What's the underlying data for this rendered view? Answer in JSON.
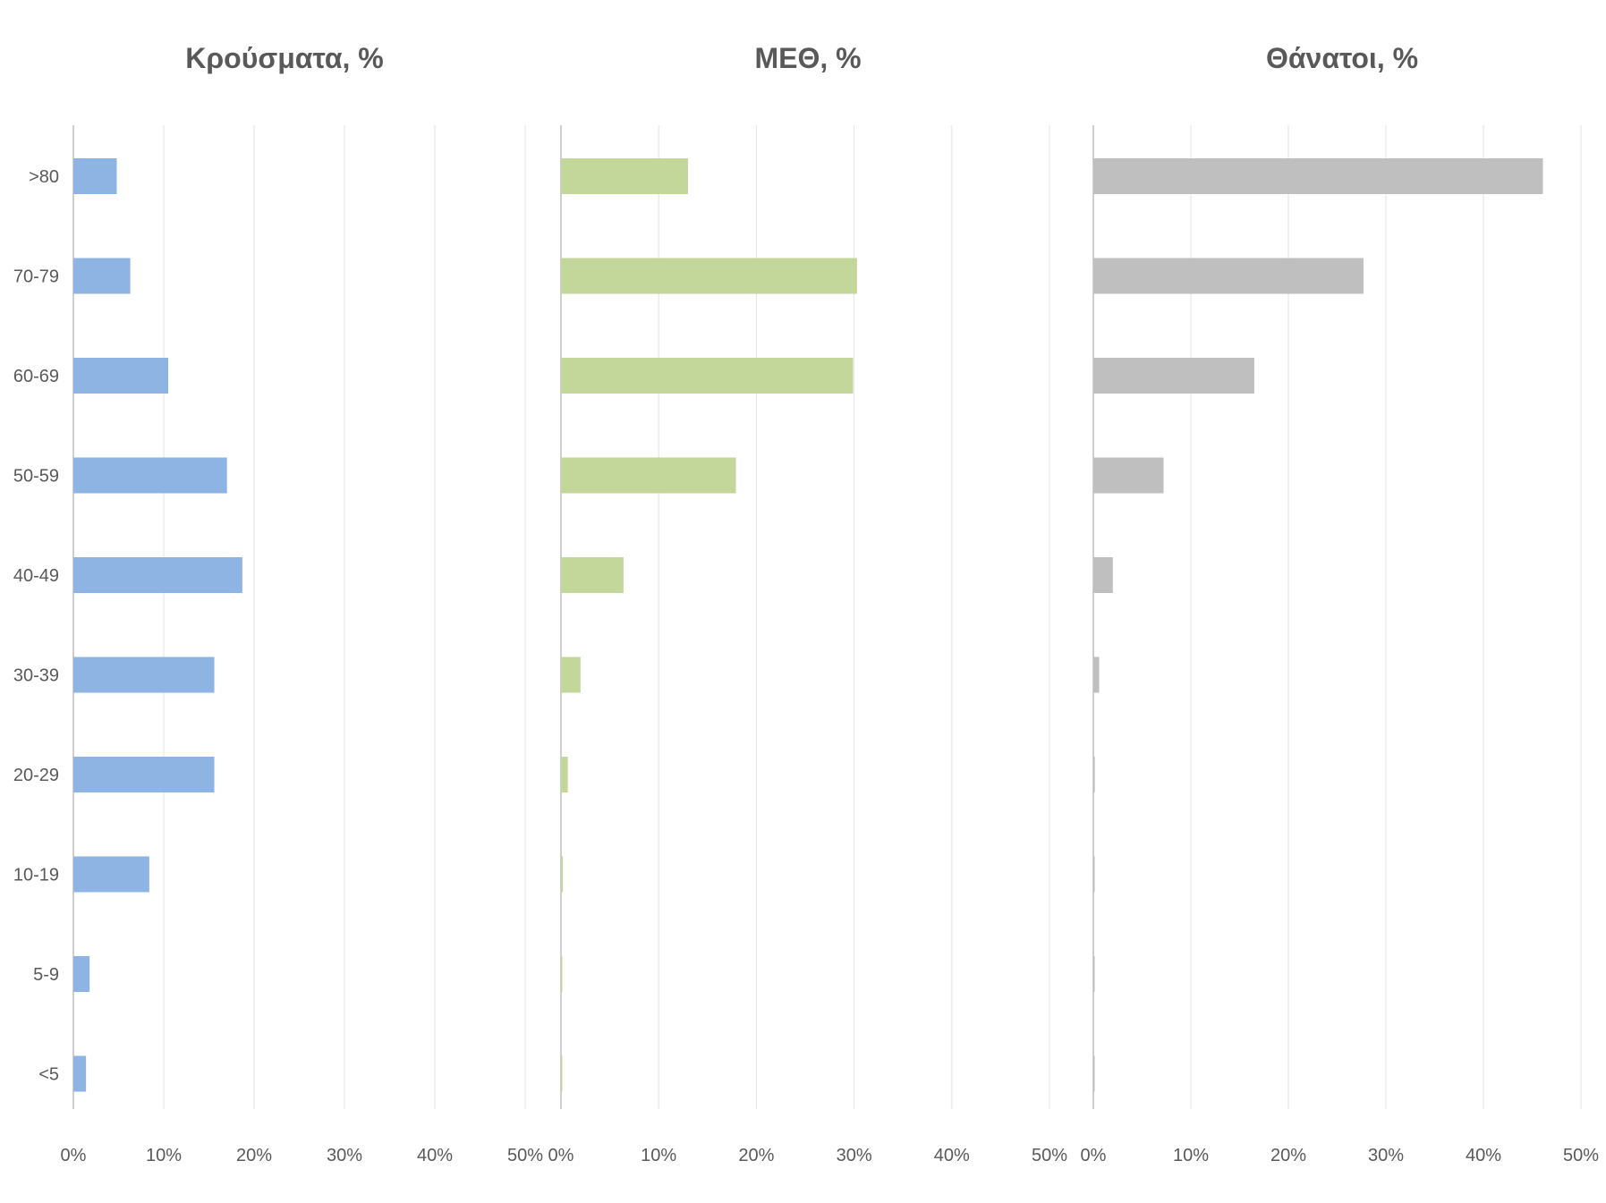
{
  "chart_data": [
    {
      "type": "bar",
      "orientation": "horizontal",
      "title": "Κρούσματα, %",
      "categories": [
        ">80",
        "70-79",
        "60-69",
        "50-59",
        "40-49",
        "30-39",
        "20-29",
        "10-19",
        "5-9",
        "<5"
      ],
      "values": [
        4.8,
        6.3,
        10.5,
        17.0,
        18.7,
        15.6,
        15.6,
        8.4,
        1.8,
        1.4
      ],
      "xlim": [
        0,
        50
      ],
      "ticks": [
        "0%",
        "10%",
        "20%",
        "30%",
        "40%",
        "50%"
      ],
      "grid": true,
      "color": "#8EB4E3"
    },
    {
      "type": "bar",
      "orientation": "horizontal",
      "title": "ΜΕΘ, %",
      "categories": [
        ">80",
        "70-79",
        "60-69",
        "50-59",
        "40-49",
        "30-39",
        "20-29",
        "10-19",
        "5-9",
        "<5"
      ],
      "values": [
        13.0,
        30.3,
        29.9,
        17.9,
        6.4,
        2.0,
        0.7,
        0.2,
        0.1,
        0.1
      ],
      "xlim": [
        0,
        50
      ],
      "ticks": [
        "0%",
        "10%",
        "20%",
        "30%",
        "40%",
        "50%"
      ],
      "grid": true,
      "color": "#C4D79B"
    },
    {
      "type": "bar",
      "orientation": "horizontal",
      "title": "Θάνατοι, %",
      "categories": [
        ">80",
        "70-79",
        "60-69",
        "50-59",
        "40-49",
        "30-39",
        "20-29",
        "10-19",
        "5-9",
        "<5"
      ],
      "values": [
        46.1,
        27.7,
        16.5,
        7.2,
        2.0,
        0.6,
        0.15,
        0.1,
        0.05,
        0.1
      ],
      "xlim": [
        0,
        50
      ],
      "ticks": [
        "0%",
        "10%",
        "20%",
        "30%",
        "40%",
        "50%"
      ],
      "grid": true,
      "color": "#BFBFBF"
    }
  ]
}
